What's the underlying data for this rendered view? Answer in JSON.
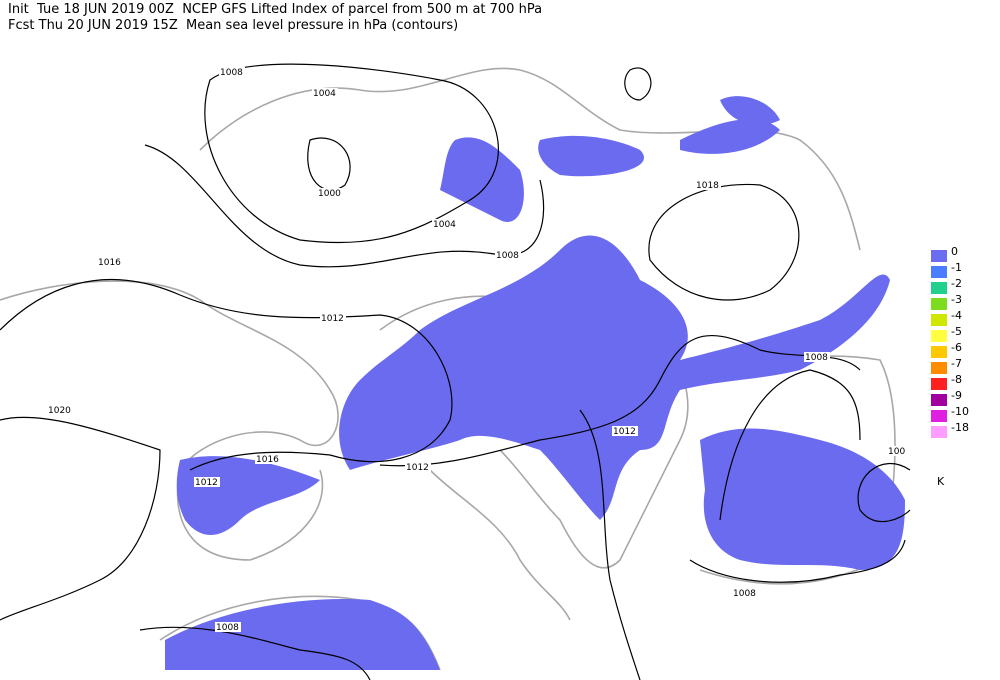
{
  "header": {
    "line1": "Init  Tue 18 JUN 2019 00Z  NCEP GFS Lifted Index of parcel from 500 m at 700 hPa",
    "line2": "Fcst Thu 20 JUN 2019 15Z  Mean sea level pressure in hPa (contours)"
  },
  "contour_labels": [
    1008,
    1004,
    1000,
    1004,
    1008,
    1016,
    1012,
    1020,
    1016,
    1012,
    1012,
    1012,
    1018,
    1008,
    "100",
    1008,
    1008
  ],
  "legend": {
    "values": [
      0,
      -1,
      -2,
      -3,
      -4,
      -5,
      -6,
      -7,
      -8,
      -9,
      -10,
      -18
    ],
    "colors": [
      "#6c6cf0",
      "#4a7cff",
      "#20d08c",
      "#7cdc20",
      "#d0e800",
      "#ffff40",
      "#ffc800",
      "#ff8c00",
      "#ff2020",
      "#a000a0",
      "#e020e0",
      "#ff9cff"
    ],
    "unit": "K"
  }
}
